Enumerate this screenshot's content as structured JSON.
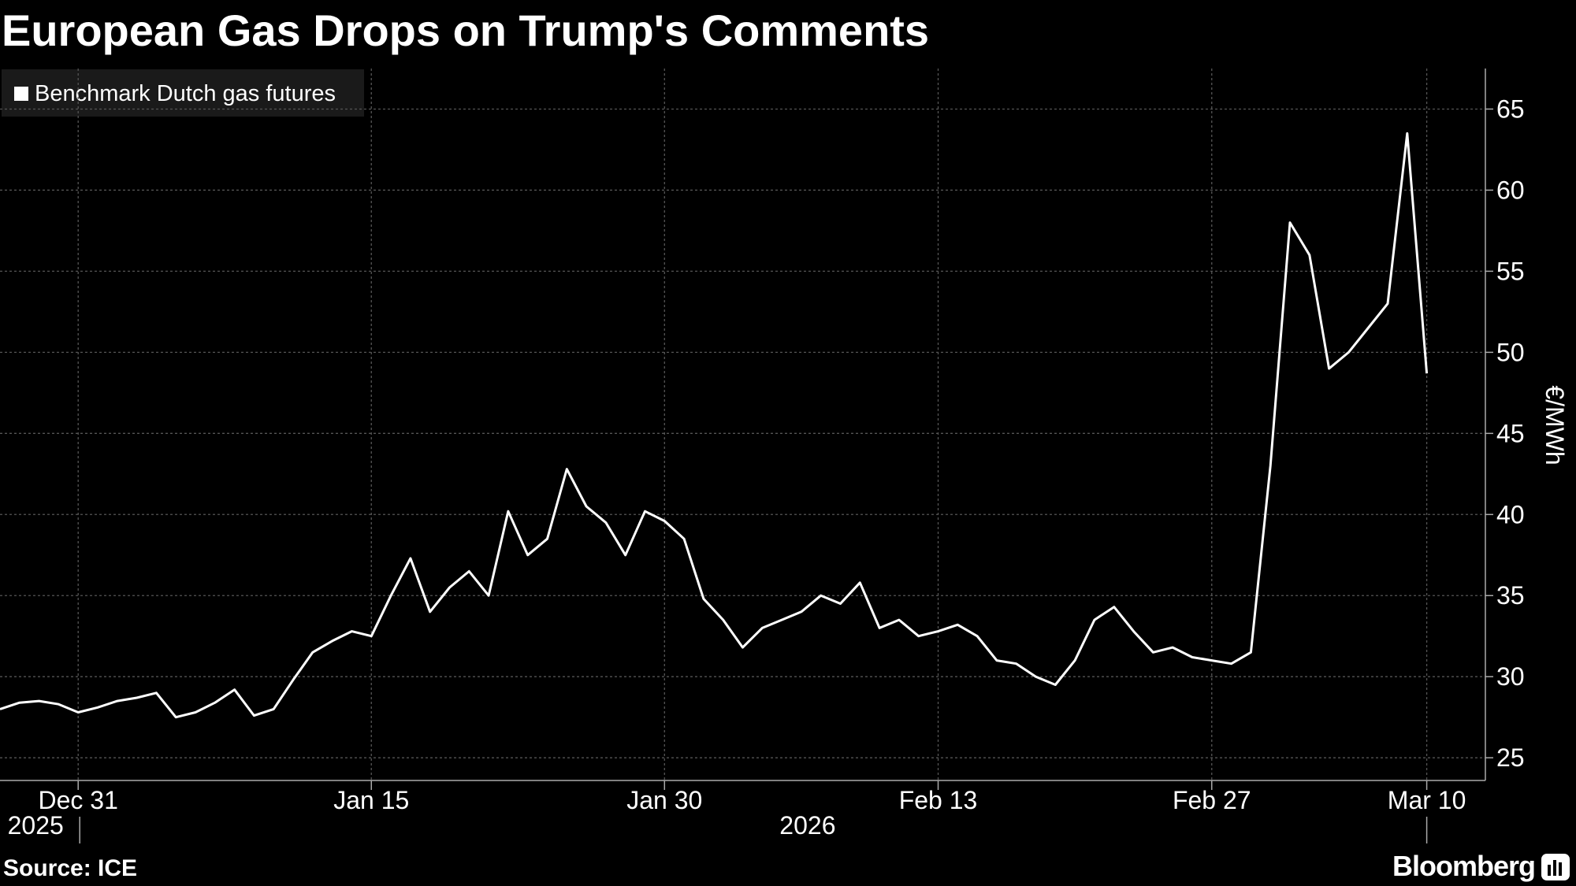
{
  "chart_data": {
    "type": "line",
    "title": "European Gas Drops on Trump's Comments",
    "source": "Source: ICE",
    "brand": "Bloomberg",
    "legend": "top-left",
    "grid": true,
    "y_label": "€/MWh",
    "x_year_labels": [
      "2025",
      "2026"
    ],
    "x": [
      "2025-12-27",
      "2025-12-28",
      "2025-12-29",
      "2025-12-30",
      "2025-12-31",
      "2026-01-01",
      "2026-01-02",
      "2026-01-03",
      "2026-01-04",
      "2026-01-05",
      "2026-01-06",
      "2026-01-07",
      "2026-01-08",
      "2026-01-09",
      "2026-01-10",
      "2026-01-11",
      "2026-01-12",
      "2026-01-13",
      "2026-01-14",
      "2026-01-15",
      "2026-01-16",
      "2026-01-17",
      "2026-01-18",
      "2026-01-19",
      "2026-01-20",
      "2026-01-21",
      "2026-01-22",
      "2026-01-23",
      "2026-01-24",
      "2026-01-25",
      "2026-01-26",
      "2026-01-27",
      "2026-01-28",
      "2026-01-29",
      "2026-01-30",
      "2026-01-31",
      "2026-02-01",
      "2026-02-02",
      "2026-02-03",
      "2026-02-04",
      "2026-02-05",
      "2026-02-06",
      "2026-02-07",
      "2026-02-08",
      "2026-02-09",
      "2026-02-10",
      "2026-02-11",
      "2026-02-12",
      "2026-02-13",
      "2026-02-14",
      "2026-02-15",
      "2026-02-16",
      "2026-02-17",
      "2026-02-18",
      "2026-02-19",
      "2026-02-20",
      "2026-02-21",
      "2026-02-22",
      "2026-02-23",
      "2026-02-24",
      "2026-02-25",
      "2026-02-26",
      "2026-02-27",
      "2026-02-28",
      "2026-03-01",
      "2026-03-02",
      "2026-03-03",
      "2026-03-04",
      "2026-03-05",
      "2026-03-06",
      "2026-03-07",
      "2026-03-08",
      "2026-03-09",
      "2026-03-10"
    ],
    "series": [
      {
        "name": "Benchmark Dutch gas futures",
        "color": "#ffffff",
        "values": [
          28.0,
          28.4,
          28.5,
          28.3,
          27.8,
          28.1,
          28.5,
          28.7,
          29.0,
          27.5,
          27.8,
          28.4,
          29.2,
          27.6,
          28.0,
          29.8,
          31.5,
          32.2,
          32.8,
          32.5,
          35.0,
          37.3,
          34.0,
          35.5,
          36.5,
          35.0,
          40.2,
          37.5,
          38.5,
          42.8,
          40.5,
          39.5,
          37.5,
          40.2,
          39.6,
          38.5,
          34.8,
          33.5,
          31.8,
          33.0,
          33.5,
          34.0,
          35.0,
          34.5,
          35.8,
          33.0,
          33.5,
          32.5,
          32.8,
          33.2,
          32.5,
          31.0,
          30.8,
          30.0,
          29.5,
          31.0,
          33.5,
          34.3,
          32.8,
          31.5,
          31.8,
          31.2,
          31.0,
          30.8,
          31.5,
          43.0,
          58.0,
          56.0,
          49.0,
          50.0,
          51.5,
          53.0,
          63.5,
          48.7
        ]
      }
    ],
    "xlim": [
      "2025-12-27",
      "2026-03-13"
    ],
    "xticks": [
      {
        "value": "2025-12-31",
        "label": "Dec 31"
      },
      {
        "value": "2026-01-15",
        "label": "Jan 15"
      },
      {
        "value": "2026-01-30",
        "label": "Jan 30"
      },
      {
        "value": "2026-02-13",
        "label": "Feb 13"
      },
      {
        "value": "2026-02-27",
        "label": "Feb 27"
      },
      {
        "value": "2026-03-10",
        "label": "Mar 10"
      }
    ],
    "ylim": [
      23.6,
      67.5
    ],
    "yticks": [
      25,
      30,
      35,
      40,
      45,
      50,
      55,
      60,
      65
    ]
  }
}
